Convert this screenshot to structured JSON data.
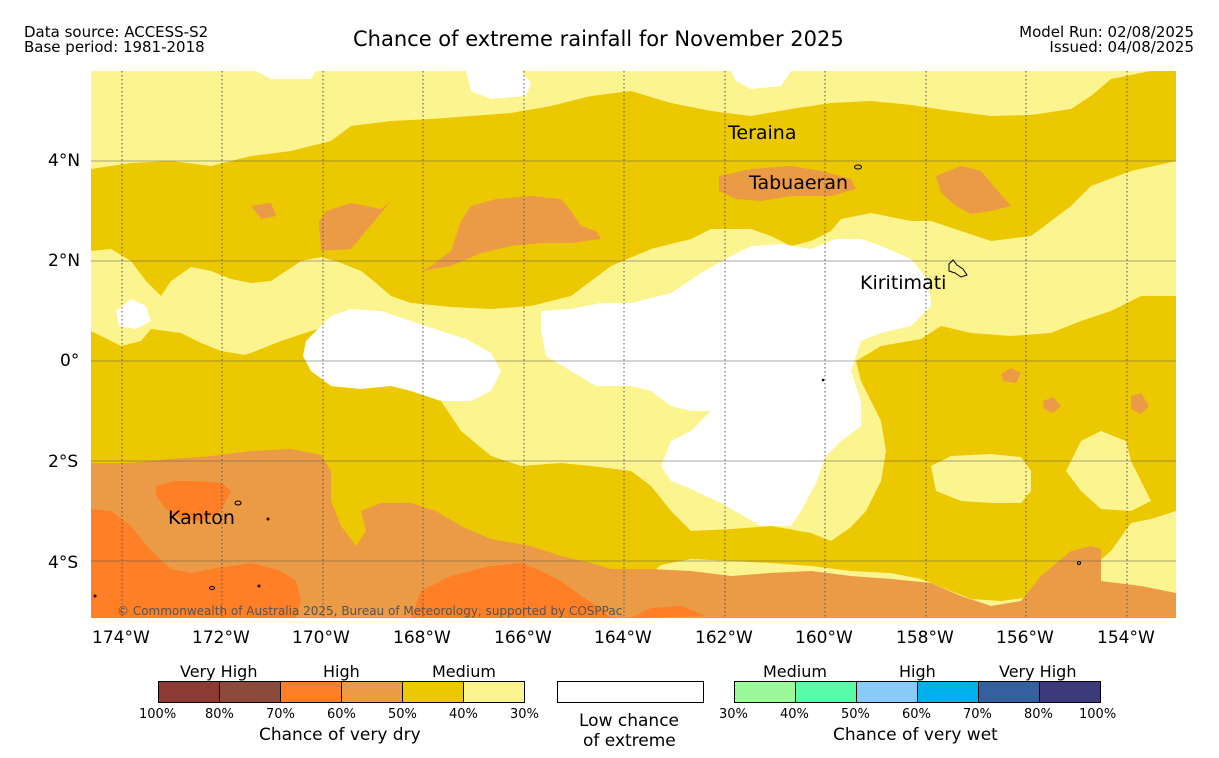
{
  "header": {
    "data_source": "Data source: ACCESS-S2",
    "base_period": "Base period: 1981-2018",
    "title": "Chance of extreme rainfall for November 2025",
    "model_run": "Model Run: 02/08/2025",
    "issued": "Issued: 04/08/2025"
  },
  "map": {
    "lat_labels": [
      "4°N",
      "2°N",
      "0°",
      "2°S",
      "4°S"
    ],
    "lon_labels": [
      "174°W",
      "172°W",
      "170°W",
      "168°W",
      "166°W",
      "164°W",
      "162°W",
      "160°W",
      "158°W",
      "156°W",
      "154°W"
    ],
    "places": {
      "teraina": "Teraina",
      "tabuaeran": "Tabuaeran",
      "kiritimati": "Kiritimati",
      "kanton": "Kanton"
    },
    "copyright": "© Commonwealth of Australia 2025, Bureau of Meteorology, supported by COSPPac",
    "colors": {
      "dry_medium_30_40": "#fcf48e",
      "dry_medium_40_50": "#ecc800",
      "dry_high_50_60": "#eb9a46",
      "dry_high_60_70": "#fe7f26",
      "low_chance": "#ffffff"
    }
  },
  "legend": {
    "dry": {
      "categories": [
        "Very High",
        "High",
        "Medium"
      ],
      "percentages": [
        "100%",
        "80%",
        "70%",
        "60%",
        "50%",
        "40%",
        "30%"
      ],
      "colors": [
        "#8c3a33",
        "#8b4a3a",
        "#fe7f26",
        "#eb9a46",
        "#ecc800",
        "#fcf48e"
      ],
      "caption": "Chance of very dry"
    },
    "neutral": {
      "line1": "Low chance",
      "line2": "of extreme"
    },
    "wet": {
      "categories": [
        "Medium",
        "High",
        "Very High"
      ],
      "percentages": [
        "30%",
        "40%",
        "50%",
        "60%",
        "70%",
        "80%",
        "100%"
      ],
      "colors": [
        "#9cf99a",
        "#58fca8",
        "#87cbf8",
        "#00b1ec",
        "#35609e",
        "#3c3a7a"
      ],
      "caption": "Chance of very wet"
    }
  }
}
